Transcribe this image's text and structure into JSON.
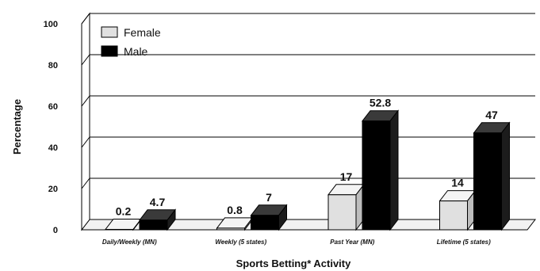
{
  "chart_data": {
    "type": "bar",
    "style": "3d",
    "title": "",
    "xlabel": "Sports Betting* Activity",
    "ylabel": "Percentage",
    "ylim": [
      0,
      100
    ],
    "yticks": [
      "0",
      "20",
      "40",
      "60",
      "80",
      "100"
    ],
    "categories": [
      "Daily/Weekly (MN)",
      "Weekly (5 states)",
      "Past Year (MN)",
      "Lifetime (5 states)"
    ],
    "series": [
      {
        "name": "Female",
        "values": [
          0.2,
          0.8,
          17,
          14
        ],
        "labels": [
          "0.2",
          "0.8",
          "17",
          "14"
        ],
        "color": "#e0e0e0"
      },
      {
        "name": "Male",
        "values": [
          4.7,
          7,
          52.8,
          47
        ],
        "labels": [
          "4.7",
          "7",
          "52.8",
          "47"
        ],
        "color": "#000000"
      }
    ],
    "grid": true,
    "legend": "top-left"
  }
}
